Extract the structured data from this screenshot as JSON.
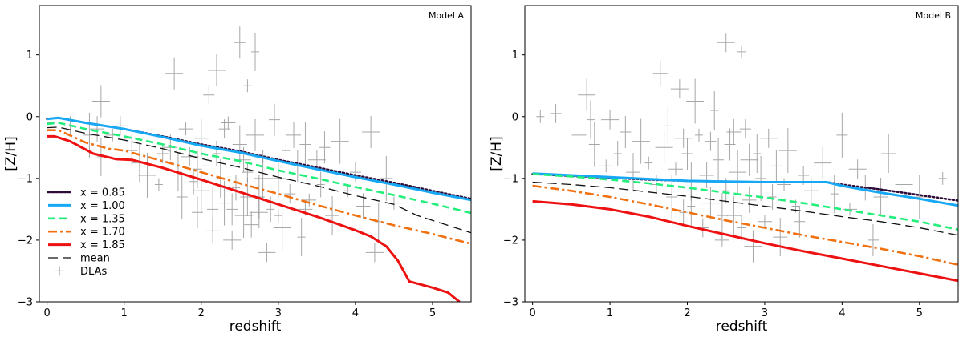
{
  "chart_data": [
    {
      "type": "line",
      "title": "",
      "annotation": "Model A",
      "xlabel": "redshift",
      "ylabel": "[Z/H]",
      "xlim": [
        -0.1,
        5.5
      ],
      "ylim": [
        -3,
        1.8
      ],
      "xticks": [
        "0",
        "1",
        "2",
        "3",
        "4",
        "5"
      ],
      "yticks": [
        "−3",
        "−2",
        "−1",
        "0",
        "1"
      ],
      "legend": {
        "location": "lower-left",
        "entries": [
          "x = 0.85",
          "x = 1.00",
          "x = 1.35",
          "x = 1.70",
          "x = 1.85",
          "mean",
          "DLAs"
        ]
      },
      "series": [
        {
          "name": "x = 0.85",
          "color": "#2d0a38",
          "dash": "dotted",
          "x": [
            0,
            0.15,
            0.5,
            1,
            1.5,
            2,
            2.5,
            3,
            3.5,
            4,
            4.5,
            5,
            5.5
          ],
          "y": [
            -0.04,
            -0.02,
            -0.1,
            -0.2,
            -0.32,
            -0.45,
            -0.56,
            -0.7,
            -0.82,
            -0.95,
            -1.07,
            -1.2,
            -1.33
          ]
        },
        {
          "name": "x = 1.00",
          "color": "#17a8f5",
          "dash": "solid",
          "x": [
            0,
            0.15,
            0.5,
            1,
            1.5,
            2,
            2.5,
            3,
            3.5,
            4,
            4.5,
            5,
            5.5
          ],
          "y": [
            -0.04,
            -0.02,
            -0.1,
            -0.2,
            -0.33,
            -0.47,
            -0.58,
            -0.72,
            -0.85,
            -0.98,
            -1.1,
            -1.23,
            -1.35
          ]
        },
        {
          "name": "x = 1.35",
          "color": "#22ee7a",
          "dash": "dashed",
          "x": [
            0,
            0.15,
            0.5,
            1,
            1.5,
            2,
            2.5,
            3,
            3.5,
            4,
            4.5,
            5,
            5.5
          ],
          "y": [
            -0.12,
            -0.1,
            -0.2,
            -0.32,
            -0.45,
            -0.6,
            -0.72,
            -0.87,
            -1.0,
            -1.14,
            -1.27,
            -1.41,
            -1.56
          ]
        },
        {
          "name": "x = 1.70",
          "color": "#f07010",
          "dash": "dashdot",
          "x": [
            0,
            0.15,
            0.5,
            0.8,
            1,
            1.5,
            2,
            2.5,
            3,
            3.5,
            4,
            4.5,
            5,
            5.5
          ],
          "y": [
            -0.22,
            -0.22,
            -0.42,
            -0.52,
            -0.55,
            -0.72,
            -0.9,
            -1.08,
            -1.25,
            -1.43,
            -1.6,
            -1.76,
            -1.9,
            -2.06
          ]
        },
        {
          "name": "x = 1.85",
          "color": "#ee1111",
          "dash": "solid",
          "x": [
            0,
            0.1,
            0.3,
            0.6,
            0.9,
            1.1,
            1.5,
            2,
            2.5,
            3,
            3.5,
            4,
            4.2,
            4.4,
            4.55,
            4.7,
            5.0,
            5.2,
            5.35
          ],
          "y": [
            -0.32,
            -0.32,
            -0.4,
            -0.6,
            -0.69,
            -0.7,
            -0.83,
            -1.02,
            -1.22,
            -1.42,
            -1.62,
            -1.84,
            -1.94,
            -2.1,
            -2.33,
            -2.67,
            -2.77,
            -2.85,
            -3.0
          ]
        },
        {
          "name": "mean",
          "color": "#111111",
          "dash": "longdash",
          "x": [
            0,
            0.15,
            0.5,
            1,
            1.5,
            2,
            2.5,
            3,
            3.5,
            4,
            4.5,
            4.8,
            5,
            5.5
          ],
          "y": [
            -0.18,
            -0.17,
            -0.27,
            -0.38,
            -0.52,
            -0.68,
            -0.82,
            -0.98,
            -1.12,
            -1.28,
            -1.42,
            -1.6,
            -1.68,
            -1.88
          ]
        }
      ],
      "scatter": {
        "name": "DLAs",
        "points": [
          [
            0.05,
            -0.1
          ],
          [
            0.3,
            -0.15
          ],
          [
            0.65,
            -0.2
          ],
          [
            0.7,
            0.25
          ],
          [
            0.7,
            -0.65
          ],
          [
            0.55,
            -0.3
          ],
          [
            0.85,
            -0.3
          ],
          [
            0.95,
            -0.15
          ],
          [
            1.05,
            -0.35
          ],
          [
            1.1,
            -0.55
          ],
          [
            1.2,
            -0.75
          ],
          [
            1.3,
            -0.95
          ],
          [
            1.45,
            -1.1
          ],
          [
            1.5,
            -0.6
          ],
          [
            1.6,
            -0.5
          ],
          [
            1.65,
            0.7
          ],
          [
            1.7,
            -0.9
          ],
          [
            1.75,
            -1.3
          ],
          [
            1.8,
            -0.2
          ],
          [
            1.85,
            -0.65
          ],
          [
            1.9,
            -1.05
          ],
          [
            1.95,
            -1.55
          ],
          [
            2.0,
            -0.35
          ],
          [
            2.0,
            -1.2
          ],
          [
            2.05,
            -0.8
          ],
          [
            2.1,
            0.35
          ],
          [
            2.15,
            -1.85
          ],
          [
            2.2,
            0.75
          ],
          [
            2.25,
            -1.0
          ],
          [
            2.3,
            -1.4
          ],
          [
            2.35,
            -0.1
          ],
          [
            2.4,
            -2.0
          ],
          [
            2.45,
            -1.15
          ],
          [
            2.5,
            1.2
          ],
          [
            2.5,
            -0.45
          ],
          [
            2.55,
            -1.6
          ],
          [
            2.6,
            0.5
          ],
          [
            2.6,
            -0.9
          ],
          [
            2.65,
            -1.75
          ],
          [
            2.7,
            -0.3
          ],
          [
            2.7,
            1.05
          ],
          [
            2.75,
            -1.3
          ],
          [
            2.8,
            -0.65
          ],
          [
            2.85,
            -2.2
          ],
          [
            2.9,
            -1.5
          ],
          [
            2.95,
            -0.05
          ],
          [
            3.0,
            -1.0
          ],
          [
            3.05,
            -1.8
          ],
          [
            3.1,
            -0.55
          ],
          [
            3.15,
            -1.25
          ],
          [
            3.2,
            -0.3
          ],
          [
            3.25,
            -0.8
          ],
          [
            3.3,
            -1.95
          ],
          [
            3.35,
            -0.45
          ],
          [
            3.4,
            -1.35
          ],
          [
            3.5,
            -0.7
          ],
          [
            3.55,
            -1.1
          ],
          [
            3.6,
            -0.5
          ],
          [
            3.7,
            -1.6
          ],
          [
            3.8,
            -0.4
          ],
          [
            3.9,
            -1.2
          ],
          [
            4.0,
            -0.9
          ],
          [
            4.1,
            -1.45
          ],
          [
            4.2,
            -0.25
          ],
          [
            4.3,
            -1.7
          ],
          [
            4.4,
            -1.0
          ],
          [
            4.5,
            -1.4
          ],
          [
            4.25,
            -2.2
          ],
          [
            2.2,
            -0.6
          ],
          [
            2.4,
            -1.5
          ],
          [
            2.6,
            -1.3
          ],
          [
            2.8,
            -1.0
          ],
          [
            3.0,
            -1.6
          ],
          [
            2.3,
            -0.2
          ],
          [
            2.55,
            -0.7
          ],
          [
            2.75,
            -1.55
          ],
          [
            1.95,
            -0.85
          ],
          [
            2.15,
            -1.5
          ],
          [
            3.35,
            -1.5
          ]
        ]
      }
    },
    {
      "type": "line",
      "title": "",
      "annotation": "Model B",
      "xlabel": "redshift",
      "ylabel": "[Z/H]",
      "xlim": [
        -0.1,
        5.5
      ],
      "ylim": [
        -3,
        1.8
      ],
      "xticks": [
        "0",
        "1",
        "2",
        "3",
        "4",
        "5"
      ],
      "yticks": [
        "−3",
        "−2",
        "−1",
        "0",
        "1"
      ],
      "series": [
        {
          "name": "x = 0.85",
          "color": "#2d0a38",
          "dash": "dotted",
          "x": [
            0,
            0.5,
            1,
            1.5,
            2,
            2.5,
            3,
            3.5,
            3.8,
            4,
            4.5,
            5,
            5.5
          ],
          "y": [
            -0.93,
            -0.96,
            -0.99,
            -1.02,
            -1.04,
            -1.05,
            -1.06,
            -1.06,
            -1.06,
            -1.1,
            -1.18,
            -1.27,
            -1.36
          ]
        },
        {
          "name": "x = 1.00",
          "color": "#17a8f5",
          "dash": "solid",
          "x": [
            0,
            0.5,
            1,
            1.5,
            2,
            2.5,
            3,
            3.5,
            3.8,
            4,
            4.5,
            5,
            5.5
          ],
          "y": [
            -0.92,
            -0.95,
            -0.98,
            -1.01,
            -1.04,
            -1.05,
            -1.06,
            -1.06,
            -1.06,
            -1.12,
            -1.23,
            -1.33,
            -1.44
          ]
        },
        {
          "name": "x = 1.35",
          "color": "#22ee7a",
          "dash": "dashed",
          "x": [
            0,
            0.5,
            1,
            1.5,
            2,
            2.5,
            3,
            3.5,
            4,
            4.5,
            5,
            5.5
          ],
          "y": [
            -0.93,
            -0.97,
            -1.02,
            -1.08,
            -1.15,
            -1.23,
            -1.31,
            -1.4,
            -1.5,
            -1.6,
            -1.7,
            -1.83
          ]
        },
        {
          "name": "x = 1.70",
          "color": "#f07010",
          "dash": "dashdot",
          "x": [
            0,
            0.5,
            1,
            1.5,
            2,
            2.5,
            3,
            3.5,
            4,
            4.5,
            5,
            5.5
          ],
          "y": [
            -1.12,
            -1.2,
            -1.3,
            -1.42,
            -1.55,
            -1.68,
            -1.8,
            -1.92,
            -2.03,
            -2.14,
            -2.26,
            -2.4
          ]
        },
        {
          "name": "x = 1.85",
          "color": "#ee1111",
          "dash": "solid",
          "x": [
            0,
            0.5,
            1,
            1.5,
            2,
            2.5,
            3,
            3.5,
            4,
            4.5,
            5,
            5.5
          ],
          "y": [
            -1.37,
            -1.42,
            -1.5,
            -1.62,
            -1.77,
            -1.91,
            -2.05,
            -2.18,
            -2.3,
            -2.42,
            -2.54,
            -2.66
          ]
        },
        {
          "name": "mean",
          "color": "#111111",
          "dash": "longdash",
          "x": [
            0,
            0.5,
            1,
            1.5,
            2,
            2.5,
            3,
            3.5,
            4,
            4.5,
            5,
            5.5
          ],
          "y": [
            -1.06,
            -1.1,
            -1.15,
            -1.22,
            -1.29,
            -1.37,
            -1.45,
            -1.53,
            -1.62,
            -1.7,
            -1.8,
            -1.92
          ]
        }
      ],
      "scatter": {
        "name": "DLAs",
        "points": [
          [
            0.1,
            0.0
          ],
          [
            0.3,
            0.05
          ],
          [
            0.6,
            -0.3
          ],
          [
            0.7,
            0.35
          ],
          [
            0.75,
            -0.05
          ],
          [
            0.8,
            -0.45
          ],
          [
            0.95,
            -0.8
          ],
          [
            1.0,
            -0.05
          ],
          [
            1.1,
            -0.6
          ],
          [
            1.2,
            -0.25
          ],
          [
            1.3,
            -0.9
          ],
          [
            1.4,
            -0.4
          ],
          [
            1.5,
            -0.75
          ],
          [
            1.6,
            -1.1
          ],
          [
            1.65,
            0.7
          ],
          [
            1.7,
            -0.5
          ],
          [
            1.75,
            -0.15
          ],
          [
            1.8,
            -1.3
          ],
          [
            1.85,
            -0.85
          ],
          [
            1.9,
            0.45
          ],
          [
            1.95,
            -1.55
          ],
          [
            2.0,
            -0.6
          ],
          [
            2.05,
            -1.05
          ],
          [
            2.1,
            0.25
          ],
          [
            2.15,
            -0.3
          ],
          [
            2.2,
            -1.8
          ],
          [
            2.25,
            -0.95
          ],
          [
            2.3,
            -1.4
          ],
          [
            2.35,
            0.1
          ],
          [
            2.4,
            -0.7
          ],
          [
            2.45,
            -2.0
          ],
          [
            2.5,
            1.2
          ],
          [
            2.5,
            -1.2
          ],
          [
            2.55,
            -0.45
          ],
          [
            2.6,
            -1.6
          ],
          [
            2.65,
            -0.9
          ],
          [
            2.7,
            1.05
          ],
          [
            2.75,
            -0.2
          ],
          [
            2.8,
            -1.35
          ],
          [
            2.85,
            -2.1
          ],
          [
            2.9,
            -0.6
          ],
          [
            2.95,
            -1.0
          ],
          [
            3.0,
            -1.7
          ],
          [
            3.05,
            -0.35
          ],
          [
            3.1,
            -1.3
          ],
          [
            3.15,
            -0.8
          ],
          [
            3.2,
            -1.95
          ],
          [
            3.3,
            -0.55
          ],
          [
            3.4,
            -1.45
          ],
          [
            3.5,
            -0.95
          ],
          [
            3.6,
            -1.2
          ],
          [
            3.75,
            -0.75
          ],
          [
            3.9,
            -1.25
          ],
          [
            4.0,
            -0.3
          ],
          [
            4.1,
            -1.5
          ],
          [
            4.2,
            -0.85
          ],
          [
            4.3,
            -1.15
          ],
          [
            4.4,
            -2.0
          ],
          [
            4.6,
            -0.6
          ],
          [
            5.0,
            -1.3
          ],
          [
            5.3,
            -1.0
          ],
          [
            2.3,
            -0.4
          ],
          [
            2.6,
            -0.25
          ],
          [
            2.8,
            -0.7
          ],
          [
            2.05,
            -1.45
          ],
          [
            2.45,
            -1.6
          ],
          [
            3.25,
            -1.1
          ],
          [
            1.95,
            -0.35
          ],
          [
            2.7,
            -1.8
          ],
          [
            3.45,
            -1.7
          ],
          [
            4.5,
            -1.3
          ],
          [
            4.8,
            -1.1
          ]
        ]
      }
    }
  ]
}
